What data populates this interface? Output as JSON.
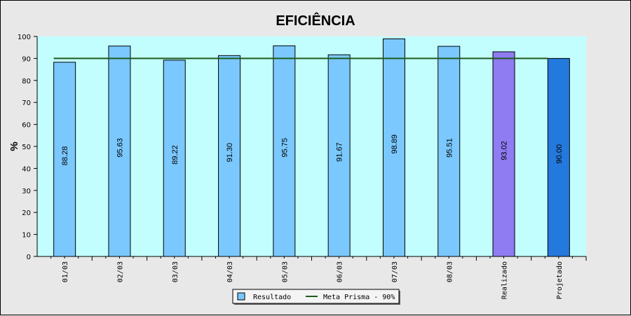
{
  "chart_data": {
    "type": "bar",
    "title": "EFICIÊNCIA",
    "ylabel": "%",
    "xlabel": "",
    "ylim": [
      0,
      100
    ],
    "yticks": [
      0,
      10,
      20,
      30,
      40,
      50,
      60,
      70,
      80,
      90,
      100
    ],
    "categories": [
      "01/03",
      "02/03",
      "03/03",
      "04/03",
      "05/03",
      "06/03",
      "07/03",
      "08/03",
      "Realizado",
      "Projetado"
    ],
    "values": [
      88.28,
      95.63,
      89.22,
      91.3,
      95.75,
      91.67,
      98.89,
      95.51,
      93.02,
      90.0
    ],
    "value_labels": [
      "88.28",
      "95.63",
      "89.22",
      "91.30",
      "95.75",
      "91.67",
      "98.89",
      "95.51",
      "93.02",
      "90.00"
    ],
    "bar_colors": [
      "#7ac8fe",
      "#7ac8fe",
      "#7ac8fe",
      "#7ac8fe",
      "#7ac8fe",
      "#7ac8fe",
      "#7ac8fe",
      "#7ac8fe",
      "#8f7bf2",
      "#2479dc"
    ],
    "target_line": {
      "name": "Meta Prisma - 90%",
      "value": 90,
      "color": "#1f5a1f"
    },
    "legend": {
      "placement": "bottom-center",
      "entries": [
        {
          "name": "Resultado",
          "kind": "box",
          "color": "#7ac8fe"
        },
        {
          "name": "Meta Prisma - 90%",
          "kind": "line",
          "color": "#1f5a1f"
        }
      ]
    },
    "plot_background": "#c2fefe",
    "grid": false
  }
}
